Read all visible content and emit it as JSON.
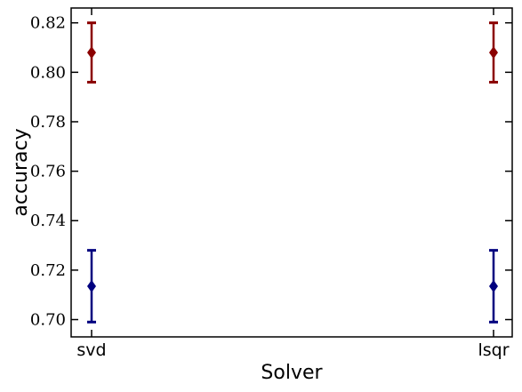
{
  "chart_data": {
    "type": "scatter",
    "xlabel": "Solver",
    "ylabel": "accuracy",
    "categories": [
      "svd",
      "lsqr"
    ],
    "ylim": [
      0.693,
      0.826
    ],
    "yticks": [
      "0.70",
      "0.72",
      "0.74",
      "0.76",
      "0.78",
      "0.80",
      "0.82"
    ],
    "grid": false,
    "series": [
      {
        "color": "#8b0000",
        "marker": "diamond",
        "values": [
          0.808,
          0.808
        ],
        "err_low": [
          0.796,
          0.796
        ],
        "err_high": [
          0.82,
          0.82
        ]
      },
      {
        "color": "#00007f",
        "marker": "diamond",
        "values": [
          0.7135,
          0.7135
        ],
        "err_low": [
          0.699,
          0.699
        ],
        "err_high": [
          0.728,
          0.728
        ]
      }
    ]
  }
}
